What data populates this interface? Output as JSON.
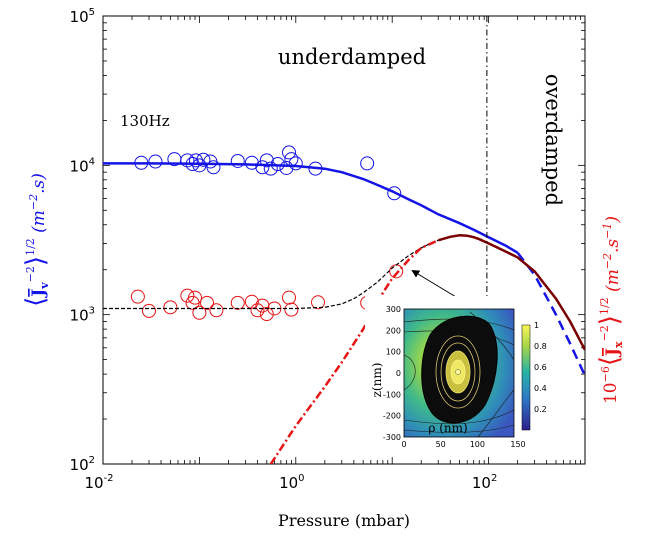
{
  "chart_data": {
    "type": "line",
    "xlabel": "Pressure (mbar)",
    "ylabel_left": "⟨J_v^2⟩^1/2 (m^-2.s)",
    "ylabel_right": "10^-6 ⟨J_x^2⟩^1/2 (m^-2.s^-1)",
    "xscale": "log",
    "yscale": "log",
    "xlim": [
      0.01,
      1000
    ],
    "ylim": [
      100,
      100000
    ],
    "x_ticks": [
      {
        "base": "10",
        "exp": "-2",
        "value": 0.01
      },
      {
        "base": "10",
        "exp": "0",
        "value": 1
      },
      {
        "base": "10",
        "exp": "2",
        "value": 100
      }
    ],
    "y_ticks": [
      {
        "base": "10",
        "exp": "2",
        "value": 100
      },
      {
        "base": "10",
        "exp": "3",
        "value": 1000
      },
      {
        "base": "10",
        "exp": "4",
        "value": 10000
      },
      {
        "base": "10",
        "exp": "5",
        "value": 100000
      }
    ],
    "annotations": {
      "underdamped": "underdamped",
      "overdamped": "overdamped",
      "frequency": "130Hz"
    },
    "regime_boundary_x": 96,
    "series": [
      {
        "color": "#1414e6",
        "kind": "markers",
        "points": [
          [
            0.025,
            10400
          ],
          [
            0.035,
            10600
          ],
          [
            0.055,
            11000
          ],
          [
            0.075,
            10800
          ],
          [
            0.085,
            10200
          ],
          [
            0.092,
            10800
          ],
          [
            0.1,
            10000
          ],
          [
            0.11,
            10900
          ],
          [
            0.13,
            10600
          ],
          [
            0.14,
            9700
          ],
          [
            0.25,
            10700
          ],
          [
            0.35,
            10400
          ],
          [
            0.45,
            9700
          ],
          [
            0.5,
            10800
          ],
          [
            0.55,
            9500
          ],
          [
            0.65,
            10200
          ],
          [
            0.8,
            9600
          ],
          [
            0.85,
            12200
          ],
          [
            0.9,
            11000
          ],
          [
            1.0,
            10300
          ],
          [
            1.6,
            9500
          ],
          [
            5.5,
            10300
          ],
          [
            10.5,
            6500
          ]
        ]
      },
      {
        "color": "#e61414",
        "kind": "markers",
        "points": [
          [
            0.023,
            1320
          ],
          [
            0.03,
            1060
          ],
          [
            0.05,
            1120
          ],
          [
            0.075,
            1340
          ],
          [
            0.085,
            1200
          ],
          [
            0.09,
            1300
          ],
          [
            0.1,
            1030
          ],
          [
            0.12,
            1200
          ],
          [
            0.15,
            1070
          ],
          [
            0.25,
            1200
          ],
          [
            0.35,
            1220
          ],
          [
            0.4,
            1070
          ],
          [
            0.45,
            1150
          ],
          [
            0.5,
            1010
          ],
          [
            0.6,
            1100
          ],
          [
            0.85,
            1300
          ],
          [
            0.9,
            1080
          ],
          [
            1.7,
            1210
          ],
          [
            5.5,
            1200
          ],
          [
            11,
            1950
          ]
        ]
      },
      {
        "color": "#1414e6",
        "kind": "fit-solid",
        "x": [
          0.01,
          0.03,
          0.1,
          0.3,
          1,
          2,
          3,
          5,
          7,
          10,
          15,
          20,
          30,
          50,
          70,
          100,
          150,
          200
        ],
        "y": [
          10300,
          10300,
          10250,
          10150,
          9900,
          9500,
          9000,
          8100,
          7400,
          6700,
          5900,
          5400,
          4700,
          4100,
          3700,
          3300,
          2900,
          2600
        ]
      },
      {
        "color": "#1414e6",
        "kind": "fit-dashed",
        "x": [
          200,
          300,
          500,
          700,
          1000
        ],
        "y": [
          2600,
          1850,
          1000,
          640,
          390
        ]
      },
      {
        "color": "#000000",
        "kind": "fit-dashed",
        "x": [
          0.01,
          0.1,
          0.5,
          1,
          2,
          3,
          4,
          5,
          7,
          10,
          15,
          20,
          25,
          30
        ],
        "y": [
          1100,
          1100,
          1100,
          1100,
          1120,
          1180,
          1280,
          1400,
          1650,
          2050,
          2500,
          2800,
          3000,
          3150
        ]
      },
      {
        "color": "#e61414",
        "kind": "fit-dashdot",
        "x": [
          0.55,
          1,
          2,
          3,
          5,
          8,
          10,
          15,
          20,
          30
        ],
        "y": [
          100,
          180,
          330,
          480,
          800,
          1400,
          1750,
          2350,
          2800,
          3150
        ]
      },
      {
        "color": "#7a0000",
        "kind": "fit-solid",
        "x": [
          30,
          40,
          50,
          60,
          70,
          80,
          100,
          150,
          200,
          300,
          500,
          700,
          1000
        ],
        "y": [
          3150,
          3320,
          3400,
          3380,
          3300,
          3200,
          3000,
          2650,
          2420,
          1950,
          1280,
          900,
          580
        ]
      }
    ]
  },
  "inset": {
    "xlabel": "ρ (nm)",
    "ylabel": "z(nm)",
    "x_ticks": [
      "0",
      "50",
      "100",
      "150"
    ],
    "y_ticks": [
      "300",
      "200",
      "100",
      "0",
      "-100",
      "-200",
      "-300"
    ],
    "colorbar_ticks": [
      "1",
      "0.8",
      "0.6",
      "0.4",
      "0.2"
    ]
  }
}
